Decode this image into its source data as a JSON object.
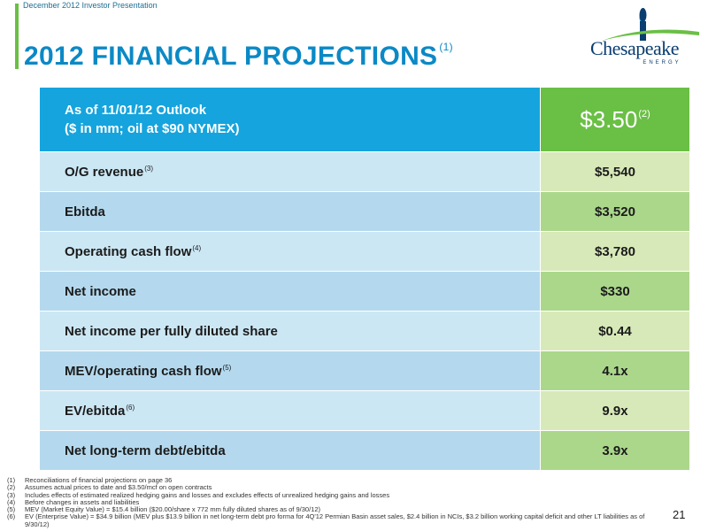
{
  "header": {
    "presentation_label": "December 2012 Investor Presentation",
    "title": "2012 FINANCIAL PROJECTIONS",
    "title_note": "(1)"
  },
  "logo": {
    "wordmark": "Chesapeake",
    "subtext": "ENERGY",
    "colors": {
      "navy": "#0a3d70",
      "green": "#6abf45",
      "sky": "#2b9fd6"
    }
  },
  "table": {
    "header_line1": "As of 11/01/12 Outlook",
    "header_line2": "($ in mm; oil at $90 NYMEX)",
    "header_value": "$3.50",
    "header_value_note": "(2)",
    "rows": [
      {
        "label": "O/G revenue",
        "note": "(3)",
        "value": "$5,540"
      },
      {
        "label": "Ebitda",
        "note": "",
        "value": "$3,520"
      },
      {
        "label": "Operating cash flow",
        "note": "(4)",
        "value": "$3,780"
      },
      {
        "label": "Net income",
        "note": "",
        "value": "$330"
      },
      {
        "label": "Net income per fully diluted share",
        "note": "",
        "value": "$0.44"
      },
      {
        "label": "MEV/operating cash flow",
        "note": "(5)",
        "value": "4.1x"
      },
      {
        "label": "EV/ebitda",
        "note": "(6)",
        "value": "9.9x"
      },
      {
        "label": "Net long-term debt/ebitda",
        "note": "",
        "value": "3.9x"
      }
    ]
  },
  "footnotes": [
    {
      "num": "(1)",
      "text": "Reconciliations of financial projections on page 36"
    },
    {
      "num": "(2)",
      "text": "Assumes actual prices to date and $3.50/mcf on open contracts"
    },
    {
      "num": "(3)",
      "text": "Includes effects of estimated realized hedging gains and losses and excludes effects of unrealized hedging gains and losses"
    },
    {
      "num": "(4)",
      "text": "Before changes in assets and liabilities"
    },
    {
      "num": "(5)",
      "text": "MEV (Market Equity Value) = $15.4 billion ($20.00/share x 772 mm fully diluted shares as of 9/30/12)"
    },
    {
      "num": "(6)",
      "text": "EV (Enterprise Value) = $34.9 billion (MEV plus $13.9 billion in net long-term debt pro forma for 4Q'12 Permian Basin asset sales, $2.4 billion in NCIs, $3.2 billion working capital deficit and other LT liabilities as of 9/30/12)"
    }
  ],
  "page_number": "21",
  "colors": {
    "title_blue": "#0b89c6",
    "header_blue": "#15a4dd",
    "header_green": "#6abf45",
    "row_blue_light": "#cce7f4",
    "row_blue_dark": "#b4d9ee",
    "row_green_light": "#d8e9b9",
    "row_green_dark": "#abd78b"
  }
}
